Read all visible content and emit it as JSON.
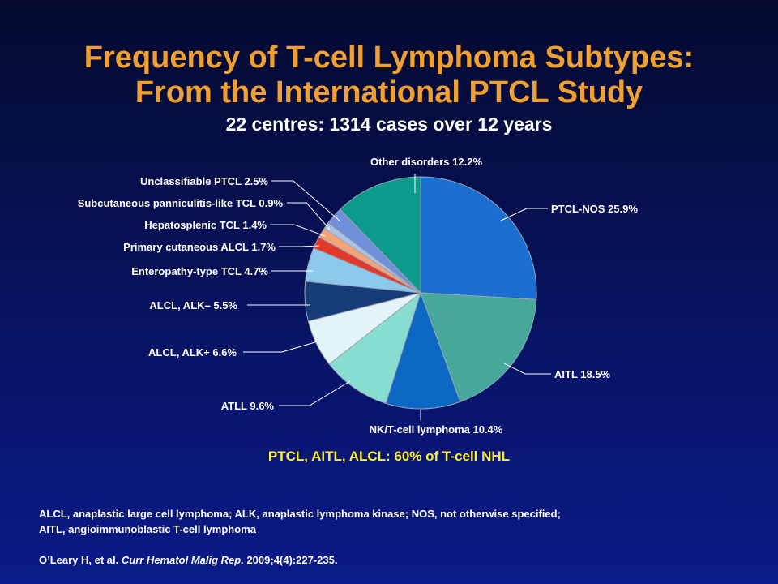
{
  "slide": {
    "title_line1": "Frequency of T-cell Lymphoma Subtypes:",
    "title_line2": "From the International PTCL Study",
    "subtitle": "22 centres: 1314 cases over 12 years",
    "highlight": "PTCL, AITL, ALCL: 60% of T-cell NHL",
    "footnote_line1": "ALCL, anaplastic large cell lymphoma; ALK, anaplastic lymphoma kinase; NOS, not otherwise specified;",
    "footnote_line2": "AITL, angioimmunoblastic T-cell lymphoma",
    "citation_authors": "O’Leary H, et al. ",
    "citation_journal": "Curr Hematol Malig Rep.",
    "citation_details": " 2009;4(4):227-235."
  },
  "chart_data": {
    "type": "pie",
    "title": "",
    "slices": [
      {
        "label": "PTCL-NOS 25.9%",
        "value": 25.9,
        "color": "#1a6fd1"
      },
      {
        "label": "AITL 18.5%",
        "value": 18.5,
        "color": "#45a89a"
      },
      {
        "label": "NK/T-cell lymphoma 10.4%",
        "value": 10.4,
        "color": "#0d68c4"
      },
      {
        "label": "ATLL 9.6%",
        "value": 9.6,
        "color": "#86ddd0"
      },
      {
        "label": "ALCL, ALK+ 6.6%",
        "value": 6.6,
        "color": "#e4f3f8"
      },
      {
        "label": "ALCL, ALK– 5.5%",
        "value": 5.5,
        "color": "#153b78"
      },
      {
        "label": "Enteropathy-type TCL 4.7%",
        "value": 4.7,
        "color": "#8cc9ec"
      },
      {
        "label": "Primary cutaneous ALCL 1.7%",
        "value": 1.7,
        "color": "#e23a2a"
      },
      {
        "label": "Hepatosplenic TCL 1.4%",
        "value": 1.4,
        "color": "#f3a276"
      },
      {
        "label": "Subcutaneous panniculitis-like TCL 0.9%",
        "value": 0.9,
        "color": "#a9c3e6"
      },
      {
        "label": "Unclassifiable PTCL 2.5%",
        "value": 2.5,
        "color": "#6f8fd8"
      },
      {
        "label": "Other disorders 12.2%",
        "value": 12.2,
        "color": "#0b9a8c"
      }
    ]
  }
}
